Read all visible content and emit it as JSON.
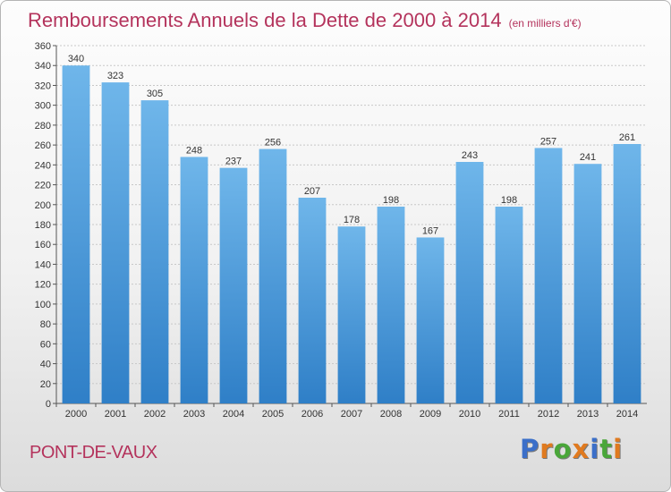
{
  "title": "Remboursements Annuels de la Dette de 2000 à 2014",
  "subtitle": "(en milliers d'€)",
  "location": "PONT-DE-VAUX",
  "logo": {
    "text": "Proxiti",
    "letter_colors": [
      "#3b6fc9",
      "#e07a1f",
      "#4aa63a",
      "#e07a1f",
      "#3b6fc9",
      "#4aa63a",
      "#e07a1f"
    ]
  },
  "colors": {
    "bar_top": "#6fb6ea",
    "bar_bottom": "#2f7fc7",
    "title": "#b4335c",
    "grid": "#c8c8c8"
  },
  "chart_data": {
    "type": "bar",
    "title": "Remboursements Annuels de la Dette de 2000 à 2014",
    "subtitle": "(en milliers d'€)",
    "categories": [
      "2000",
      "2001",
      "2002",
      "2003",
      "2004",
      "2005",
      "2006",
      "2007",
      "2008",
      "2009",
      "2010",
      "2011",
      "2012",
      "2013",
      "2014"
    ],
    "values": [
      340,
      323,
      305,
      248,
      237,
      256,
      207,
      178,
      198,
      167,
      243,
      198,
      257,
      241,
      261
    ],
    "ylim": [
      0,
      360
    ],
    "ytick_step": 20,
    "grid": true,
    "legend": "none"
  }
}
